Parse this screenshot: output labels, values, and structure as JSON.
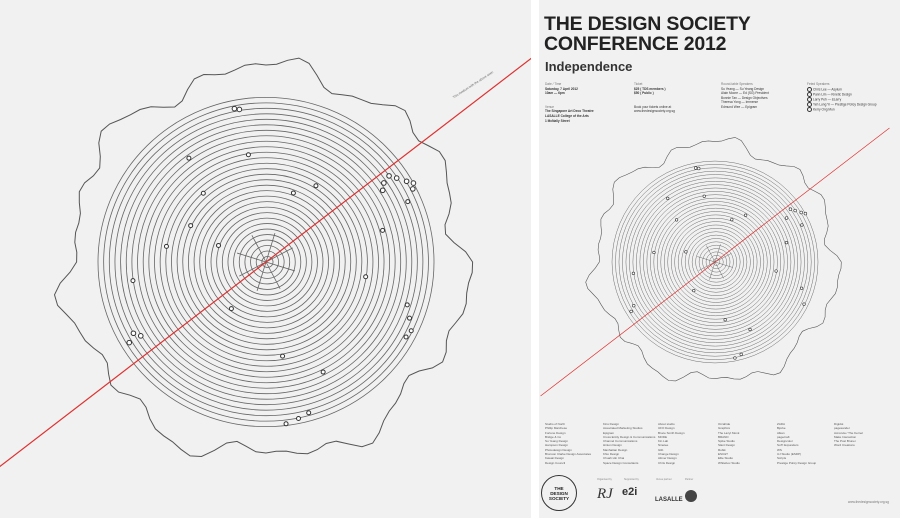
{
  "left": {
    "axis_annotation": "This medium with the above seen"
  },
  "right": {
    "title_line1": "THE DESIGN SOCIETY",
    "title_line2": "CONFERENCE 2012",
    "subtitle": "Independence",
    "date_time": {
      "label": "Date / Time",
      "line1": "Saturday, 7 April 2012",
      "line2": "10am — 6pm"
    },
    "venue": {
      "label": "Venue",
      "line1": "The Singapore Art Deco Theatre",
      "line2": "LASALLE College of the Arts",
      "line3": "1 McNally Street"
    },
    "ticket": {
      "label": "Ticket",
      "line1": "$25 ( TDS members )",
      "line2": "$50 ( Public )",
      "line3": "Book your tickets online at",
      "line4": "www.thedesignsociety.org.sg"
    },
    "roundtable": {
      "label": "Round-table Speakers",
      "items": [
        "Su Yeang — Su Yeang Design",
        "Alain Moore — Ed (SG) President",
        "Bonnie Tan — Design Objectives",
        "Theresa Yong — Immerse",
        "Edmund Wee — Epigram"
      ]
    },
    "featured": {
      "label": "Feted Speakers",
      "items": [
        "Chris Lee — Asylum",
        "Pann Lim — Kinetic Design",
        "Larry Peh — &Larry",
        "Yeh Lung Yi — Prestige Policy Design Group",
        "Kerry Ong Mun"
      ]
    },
    "sponsors": [
      [
        "Studio of North",
        "Phillip Marchese",
        "Fortune Design",
        "Bridge & Co",
        "Su Yeang Design",
        "Hampson Design",
        "Photodesign Design",
        "Bronson Clarke Design Associates",
        "Kawaii Design",
        "Design Council"
      ],
      [
        "Kins Design",
        "Associated Marketing Studios",
        "Epigram",
        "Cross Entity Design & Communications",
        "Channel Communications",
        "Hinton Design",
        "Manhattan Design",
        "Khio Design",
        "Chuah Hin Chai",
        "Space Design Consultants"
      ],
      [
        "About studio",
        "UFO Design",
        "Bruce Smith Design",
        "MODE",
        "Kin Lab",
        "Ninetee",
        "Glib",
        "Change Design",
        "Ailmer Design",
        "Chris Design"
      ],
      [
        "Orcahide",
        "Graphics",
        "The Lazyt Monk",
        "BRAND",
        "Spike Studio",
        "Slant Design",
        "Rubik",
        "ESC&T",
        "Ellie Studio",
        "Whitebox Studio"
      ],
      [
        "ZADA",
        "Bjorke",
        "Alkan",
        "pagecraft",
        "Designcolor",
        "SoTI Expanders",
        "WS",
        "UJ Studio (ESDP)",
        "Scripts",
        "Prestige Policy Design Group"
      ],
      [
        "Digidot",
        "pagesander",
        "Acrocula / The Kernel",
        "Make Interaction",
        "The Post Brunei",
        "Word Creations"
      ]
    ],
    "logo_line1": "THE",
    "logo_line2": "DESIGN",
    "logo_line3": "SOCIETY",
    "label_organized": "Organised by",
    "label_supported": "Supported by",
    "label_venue": "Venue partner",
    "label_partner": "Partner",
    "logo_rj": "RJ",
    "logo_e2i": "e2i",
    "logo_lasalle": "LASALLE",
    "website": "www.thedesignsociety.org.sg"
  }
}
